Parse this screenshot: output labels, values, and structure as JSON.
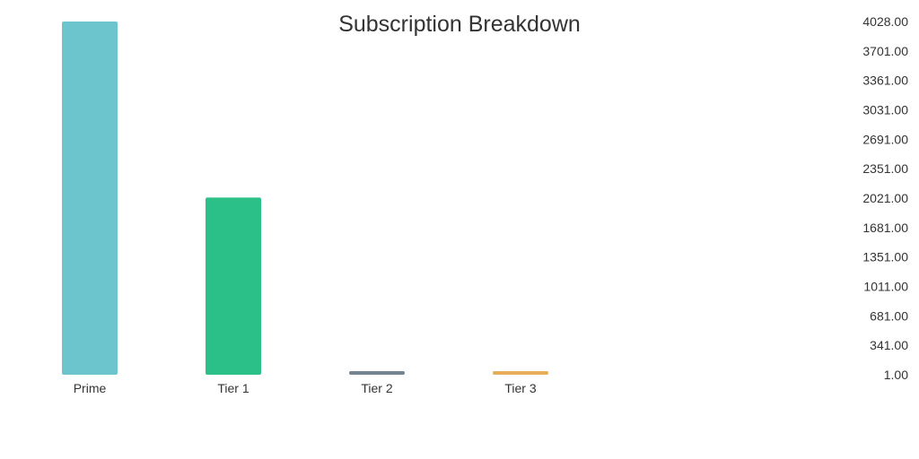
{
  "chart_data": {
    "type": "bar",
    "title": "Subscription Breakdown",
    "xlabel": "",
    "ylabel": "",
    "categories": [
      "Prime",
      "Tier 1",
      "Tier 2",
      "Tier 3"
    ],
    "values": [
      4028,
      2021,
      26,
      26
    ],
    "colors": [
      "#6cc5cc",
      "#2bc088",
      "#738390",
      "#e8ad5a"
    ],
    "ylim": [
      1,
      4028
    ],
    "y_axis_side": "right",
    "y_tick_labels": [
      "4028.00",
      "3701.00",
      "3361.00",
      "3031.00",
      "2691.00",
      "2351.00",
      "2021.00",
      "1681.00",
      "1351.00",
      "1011.00",
      "681.00",
      "341.00",
      "1.00"
    ],
    "grid": false,
    "legend": "none"
  }
}
